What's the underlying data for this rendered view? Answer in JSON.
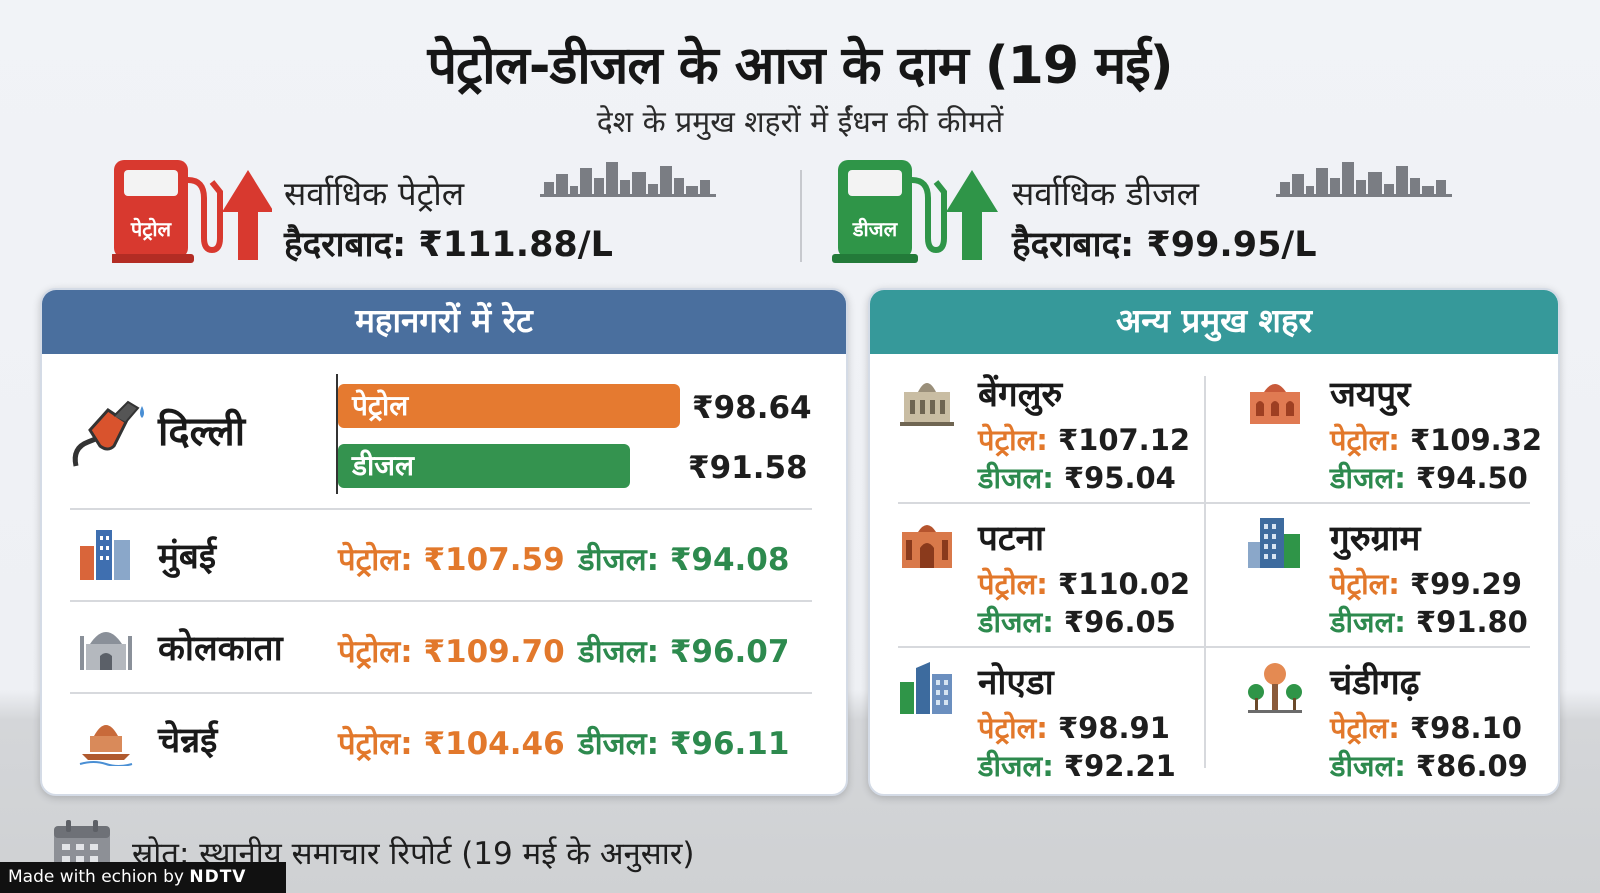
{
  "header": {
    "title": "पेट्रोल-डीजल के आज के दाम (19 मई)",
    "subtitle": "देश के प्रमुख शहरों में ईंधन की कीमतें"
  },
  "highlights": {
    "petrol": {
      "pump_label": "पेट्रोल",
      "label": "सर्वाधिक पेट्रोल",
      "value": "हैदराबाद: ₹111.88/L"
    },
    "diesel": {
      "pump_label": "डीजल",
      "label": "सर्वाधिक डीजल",
      "value": "हैदराबाद: ₹99.95/L"
    }
  },
  "metros": {
    "heading": "महानगरों में रेट",
    "delhi": {
      "name": "दिल्ली",
      "petrol_label": "पेट्रोल",
      "petrol_value": "₹98.64",
      "petrol_num": 98.64,
      "diesel_label": "डीजल",
      "diesel_value": "₹91.58",
      "diesel_num": 91.58
    },
    "rows": [
      {
        "name": "मुंबई",
        "petrol": "पेट्रोल: ₹107.59",
        "diesel": "डीजल: ₹94.08"
      },
      {
        "name": "कोलकाता",
        "petrol": "पेट्रोल: ₹109.70",
        "diesel": "डीजल: ₹96.07"
      },
      {
        "name": "चेन्नई",
        "petrol": "पेट्रोल: ₹104.46",
        "diesel": "डीजल: ₹96.11"
      }
    ]
  },
  "others": {
    "heading": "अन्य प्रमुख शहर",
    "cities": [
      {
        "name": "बेंगलुरु",
        "petrol_label": "पेट्रोल:",
        "petrol": "₹107.12",
        "diesel_label": "डीजल:",
        "diesel": "₹95.04",
        "icon": "palace-icon"
      },
      {
        "name": "जयपुर",
        "petrol_label": "पेट्रोल:",
        "petrol": "₹109.32",
        "diesel_label": "डीजल:",
        "diesel": "₹94.50",
        "icon": "fort-icon"
      },
      {
        "name": "पटना",
        "petrol_label": "पेट्रोल:",
        "petrol": "₹110.02",
        "diesel_label": "डीजल:",
        "diesel": "₹96.05",
        "icon": "gate-icon"
      },
      {
        "name": "गुरुग्राम",
        "petrol_label": "पेट्रोल:",
        "petrol": "₹99.29",
        "diesel_label": "डीजल:",
        "diesel": "₹91.80",
        "icon": "office-tower-icon"
      },
      {
        "name": "नोएडा",
        "petrol_label": "पेट्रोल:",
        "petrol": "₹98.91",
        "diesel_label": "डीजल:",
        "diesel": "₹92.21",
        "icon": "skyscraper-icon"
      },
      {
        "name": "चंडीगढ़",
        "petrol_label": "पेट्रोल:",
        "petrol": "₹98.10",
        "diesel_label": "डीजल:",
        "diesel": "₹86.09",
        "icon": "tower-trees-icon"
      }
    ]
  },
  "footer": {
    "source": "स्रोत: स्थानीय समाचार रिपोर्ट (19 मई के अनुसार)",
    "made_with_prefix": "Made with echion by",
    "made_with_brand": "NDTV"
  },
  "colors": {
    "petrol": "#e2782b",
    "diesel": "#2d8a4e",
    "metro_header": "#4a6f9e",
    "other_header": "#36999a"
  }
}
